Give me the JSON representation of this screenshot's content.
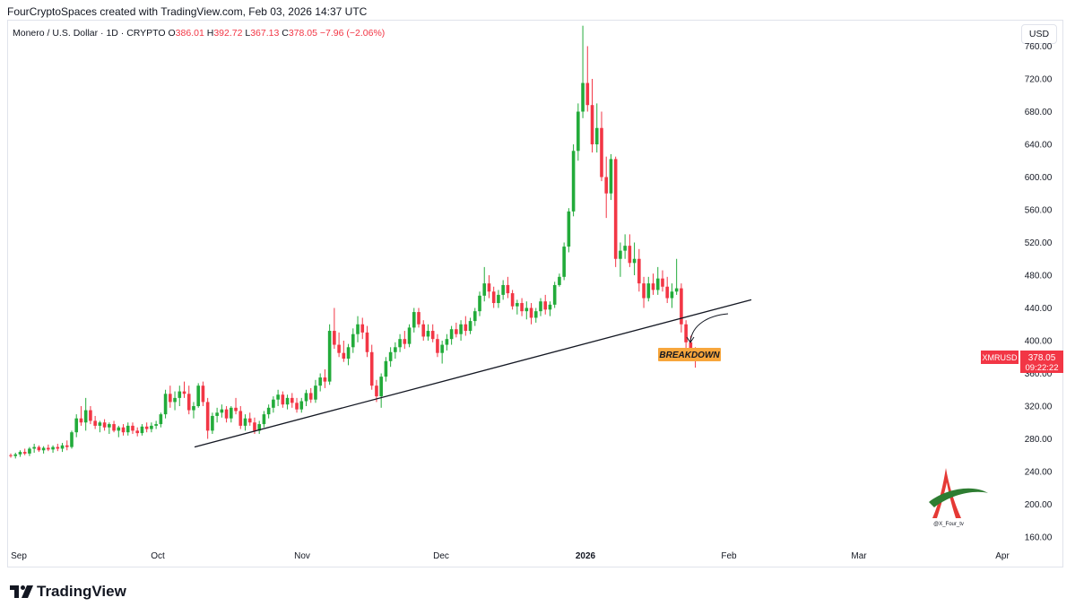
{
  "header": {
    "credit": "FourCryptoSpaces created with TradingView.com, Feb 03, 2026 14:37 UTC"
  },
  "legend": {
    "symbol": "Monero / U.S. Dollar · 1D · CRYPTO",
    "open_label": "O",
    "open": "386.01",
    "high_label": "H",
    "high": "392.72",
    "low_label": "L",
    "low": "367.13",
    "close_label": "C",
    "close": "378.05",
    "change": "−7.96 (−2.06%)"
  },
  "price_axis": {
    "currency": "USD",
    "ticks": [
      "760.00",
      "720.00",
      "680.00",
      "640.00",
      "600.00",
      "560.00",
      "520.00",
      "480.00",
      "440.00",
      "400.00",
      "360.00",
      "320.00",
      "280.00",
      "240.00",
      "200.00",
      "160.00"
    ]
  },
  "time_axis": {
    "ticks": [
      {
        "label": "Sep",
        "bold": false
      },
      {
        "label": "Oct",
        "bold": false
      },
      {
        "label": "Nov",
        "bold": false
      },
      {
        "label": "Dec",
        "bold": false
      },
      {
        "label": "2026",
        "bold": true
      },
      {
        "label": "Feb",
        "bold": false
      },
      {
        "label": "Mar",
        "bold": false
      },
      {
        "label": "Apr",
        "bold": false
      }
    ]
  },
  "price_tag": {
    "ticker": "XMRUSD",
    "price": "378.05",
    "countdown": "09:22:22"
  },
  "annotation": {
    "text": "BREAKDOWN"
  },
  "watermark": {
    "handle": "@X_Four_tv"
  },
  "footer": {
    "brand": "TradingView"
  },
  "colors": {
    "up": "#089981",
    "up_bright": "#22ab3a",
    "down": "#f23645",
    "trendline": "#131722",
    "annotation_bg": "#f7a63c",
    "price_tag_bg": "#f23645"
  },
  "chart_data": {
    "type": "candlestick",
    "title": "",
    "ylim": [
      140,
      780
    ],
    "trendline": {
      "from": {
        "date": "2025-10-01",
        "price": 270
      },
      "to": {
        "date": "2026-02-05",
        "price": 450
      }
    },
    "ohlc": [
      [
        260,
        262,
        257,
        259
      ],
      [
        259,
        263,
        256,
        261
      ],
      [
        261,
        266,
        258,
        264
      ],
      [
        264,
        268,
        260,
        262
      ],
      [
        262,
        270,
        259,
        268
      ],
      [
        268,
        274,
        263,
        270
      ],
      [
        270,
        272,
        264,
        266
      ],
      [
        266,
        271,
        262,
        269
      ],
      [
        269,
        273,
        265,
        267
      ],
      [
        267,
        272,
        263,
        270
      ],
      [
        270,
        274,
        265,
        268
      ],
      [
        268,
        275,
        264,
        272
      ],
      [
        272,
        278,
        266,
        270
      ],
      [
        270,
        290,
        268,
        288
      ],
      [
        288,
        310,
        282,
        305
      ],
      [
        305,
        320,
        296,
        300
      ],
      [
        300,
        330,
        290,
        315
      ],
      [
        315,
        320,
        298,
        302
      ],
      [
        302,
        308,
        292,
        296
      ],
      [
        296,
        302,
        288,
        300
      ],
      [
        300,
        304,
        290,
        294
      ],
      [
        294,
        300,
        286,
        298
      ],
      [
        298,
        302,
        288,
        290
      ],
      [
        290,
        296,
        282,
        294
      ],
      [
        294,
        298,
        284,
        288
      ],
      [
        288,
        300,
        284,
        296
      ],
      [
        296,
        300,
        286,
        290
      ],
      [
        290,
        294,
        283,
        287
      ],
      [
        287,
        298,
        284,
        295
      ],
      [
        295,
        300,
        288,
        292
      ],
      [
        292,
        300,
        288,
        296
      ],
      [
        296,
        302,
        292,
        298
      ],
      [
        298,
        312,
        294,
        310
      ],
      [
        310,
        340,
        305,
        335
      ],
      [
        335,
        345,
        318,
        325
      ],
      [
        325,
        338,
        315,
        330
      ],
      [
        330,
        345,
        320,
        338
      ],
      [
        338,
        350,
        330,
        335
      ],
      [
        335,
        345,
        310,
        315
      ],
      [
        315,
        325,
        305,
        320
      ],
      [
        320,
        348,
        318,
        345
      ],
      [
        345,
        350,
        320,
        325
      ],
      [
        325,
        330,
        280,
        290
      ],
      [
        290,
        312,
        286,
        308
      ],
      [
        308,
        318,
        300,
        312
      ],
      [
        312,
        322,
        306,
        316
      ],
      [
        316,
        320,
        300,
        305
      ],
      [
        305,
        320,
        300,
        318
      ],
      [
        318,
        330,
        310,
        314
      ],
      [
        314,
        320,
        292,
        296
      ],
      [
        296,
        310,
        290,
        305
      ],
      [
        305,
        312,
        296,
        300
      ],
      [
        300,
        306,
        286,
        290
      ],
      [
        290,
        302,
        286,
        298
      ],
      [
        298,
        314,
        294,
        310
      ],
      [
        310,
        322,
        305,
        318
      ],
      [
        318,
        332,
        312,
        328
      ],
      [
        328,
        340,
        320,
        334
      ],
      [
        334,
        338,
        318,
        322
      ],
      [
        322,
        334,
        316,
        330
      ],
      [
        330,
        336,
        318,
        324
      ],
      [
        324,
        330,
        312,
        316
      ],
      [
        316,
        330,
        312,
        326
      ],
      [
        326,
        340,
        320,
        336
      ],
      [
        336,
        342,
        324,
        328
      ],
      [
        328,
        352,
        324,
        345
      ],
      [
        345,
        360,
        338,
        355
      ],
      [
        355,
        365,
        342,
        350
      ],
      [
        350,
        420,
        346,
        412
      ],
      [
        412,
        440,
        390,
        395
      ],
      [
        395,
        410,
        380,
        385
      ],
      [
        385,
        400,
        374,
        378
      ],
      [
        378,
        396,
        370,
        392
      ],
      [
        392,
        415,
        385,
        408
      ],
      [
        408,
        430,
        398,
        420
      ],
      [
        420,
        428,
        402,
        410
      ],
      [
        410,
        418,
        380,
        386
      ],
      [
        386,
        395,
        340,
        345
      ],
      [
        345,
        352,
        325,
        332
      ],
      [
        332,
        360,
        318,
        356
      ],
      [
        356,
        380,
        350,
        375
      ],
      [
        375,
        392,
        368,
        386
      ],
      [
        386,
        398,
        378,
        392
      ],
      [
        392,
        408,
        386,
        402
      ],
      [
        402,
        412,
        390,
        396
      ],
      [
        396,
        420,
        392,
        416
      ],
      [
        416,
        440,
        410,
        435
      ],
      [
        435,
        440,
        416,
        420
      ],
      [
        420,
        425,
        400,
        405
      ],
      [
        405,
        420,
        400,
        412
      ],
      [
        412,
        420,
        398,
        402
      ],
      [
        402,
        408,
        380,
        385
      ],
      [
        385,
        400,
        372,
        395
      ],
      [
        395,
        408,
        388,
        402
      ],
      [
        402,
        418,
        395,
        414
      ],
      [
        414,
        422,
        404,
        408
      ],
      [
        408,
        425,
        400,
        420
      ],
      [
        420,
        430,
        406,
        412
      ],
      [
        412,
        428,
        408,
        424
      ],
      [
        424,
        440,
        418,
        436
      ],
      [
        436,
        460,
        430,
        455
      ],
      [
        455,
        490,
        448,
        470
      ],
      [
        470,
        480,
        452,
        460
      ],
      [
        460,
        466,
        440,
        446
      ],
      [
        446,
        462,
        440,
        456
      ],
      [
        456,
        474,
        450,
        468
      ],
      [
        468,
        478,
        452,
        458
      ],
      [
        458,
        462,
        438,
        442
      ],
      [
        442,
        450,
        432,
        446
      ],
      [
        446,
        452,
        430,
        436
      ],
      [
        436,
        448,
        426,
        440
      ],
      [
        440,
        446,
        420,
        428
      ],
      [
        428,
        440,
        422,
        436
      ],
      [
        436,
        452,
        430,
        448
      ],
      [
        448,
        456,
        432,
        438
      ],
      [
        438,
        448,
        430,
        444
      ],
      [
        444,
        472,
        440,
        468
      ],
      [
        468,
        482,
        466,
        478
      ],
      [
        478,
        520,
        474,
        515
      ],
      [
        515,
        562,
        508,
        558
      ],
      [
        558,
        640,
        552,
        632
      ],
      [
        632,
        690,
        620,
        680
      ],
      [
        680,
        785,
        672,
        715
      ],
      [
        715,
        760,
        680,
        688
      ],
      [
        688,
        720,
        630,
        640
      ],
      [
        640,
        690,
        630,
        660
      ],
      [
        660,
        680,
        595,
        600
      ],
      [
        600,
        625,
        550,
        580
      ],
      [
        580,
        628,
        572,
        622
      ],
      [
        622,
        625,
        490,
        500
      ],
      [
        500,
        520,
        478,
        510
      ],
      [
        510,
        530,
        500,
        516
      ],
      [
        516,
        530,
        490,
        495
      ],
      [
        495,
        520,
        480,
        500
      ],
      [
        500,
        512,
        460,
        470
      ],
      [
        470,
        478,
        440,
        452
      ],
      [
        452,
        478,
        448,
        470
      ],
      [
        470,
        482,
        456,
        462
      ],
      [
        462,
        490,
        456,
        476
      ],
      [
        476,
        486,
        460,
        466
      ],
      [
        466,
        478,
        446,
        452
      ],
      [
        452,
        470,
        440,
        460
      ],
      [
        460,
        500,
        456,
        464
      ],
      [
        464,
        470,
        410,
        420
      ],
      [
        420,
        425,
        388,
        398
      ],
      [
        398,
        406,
        380,
        386
      ],
      [
        386,
        392,
        367,
        378
      ]
    ]
  }
}
